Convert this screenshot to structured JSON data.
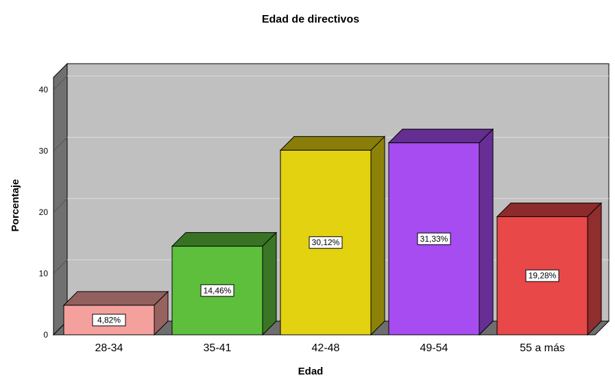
{
  "chart_data": {
    "type": "bar",
    "title": "Edad de directivos",
    "xlabel": "Edad",
    "ylabel": "Porcentaje",
    "categories": [
      "28-34",
      "35-41",
      "42-48",
      "49-54",
      "55 a más"
    ],
    "values": [
      4.82,
      14.46,
      30.12,
      31.33,
      19.28
    ],
    "data_labels": [
      "4,82%",
      "14,46%",
      "30,12%",
      "31,33%",
      "19,28%"
    ],
    "yticks": [
      "0",
      "10",
      "20",
      "30",
      "40"
    ],
    "ylim": [
      0,
      40
    ],
    "grid": true,
    "three_d": true,
    "colors": [
      "#f4a09c",
      "#5dbf3c",
      "#e2d20f",
      "#a64cf0",
      "#e84848"
    ],
    "background_color": "#c0c0c0"
  }
}
